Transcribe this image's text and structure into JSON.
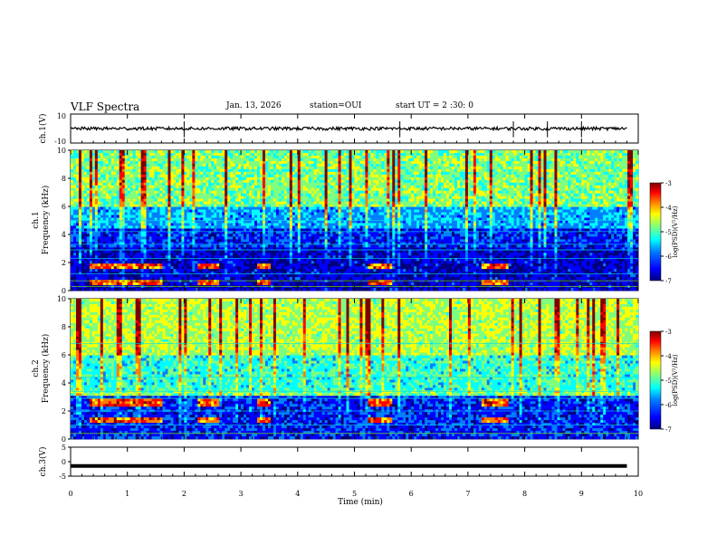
{
  "header": {
    "title": "VLF Spectra",
    "date": "Jan. 13, 2026",
    "station": "station=OUI",
    "start_ut": "start UT =  2 :30: 0"
  },
  "colors": {
    "background": "#ffffff",
    "axes": "#000000",
    "colormap": [
      "#00007f",
      "#0000ff",
      "#007fff",
      "#00ffff",
      "#7fff7f",
      "#ffff00",
      "#ff7f00",
      "#ff0000",
      "#7f0000"
    ]
  },
  "chart_data": [
    {
      "type": "line",
      "panel": "ch1-waveform",
      "ylabel": "ch.1(V)",
      "ylim": [
        -10,
        10
      ],
      "yticks": [
        "10",
        "-10"
      ],
      "description_values": {
        "baseline": 0,
        "spike_times_min": [
          2.0,
          5.8,
          7.8,
          8.4,
          9.0
        ]
      }
    },
    {
      "type": "heatmap",
      "panel": "ch1-spectrogram",
      "ylabel": "ch.1\nFrequency (kHz)",
      "xlim": [
        0,
        10
      ],
      "ylim": [
        0,
        10
      ],
      "yticks": [
        "0",
        "2",
        "4",
        "6",
        "8",
        "10"
      ],
      "colorbar": {
        "label": "log(PSD)(V²/Hz)",
        "ticks": [
          "-3",
          "-4",
          "-5",
          "-6",
          "-7"
        ],
        "range": [
          -7,
          -3
        ]
      },
      "bursts_min": [
        [
          0.35,
          1.6
        ],
        [
          2.25,
          2.6
        ],
        [
          3.3,
          3.5
        ],
        [
          5.25,
          5.65
        ],
        [
          7.25,
          7.7
        ]
      ],
      "burst_bands_khz": [
        [
          0.4,
          0.6
        ],
        [
          1.6,
          1.9
        ]
      ]
    },
    {
      "type": "heatmap",
      "panel": "ch2-spectrogram",
      "ylabel": "ch.2\nFrequency (kHz)",
      "xlim": [
        0,
        10
      ],
      "ylim": [
        0,
        10
      ],
      "yticks": [
        "0",
        "2",
        "4",
        "6",
        "8",
        "10"
      ],
      "colorbar": {
        "label": "log(PSD)(V²/Hz)",
        "ticks": [
          "-3",
          "-4",
          "-5",
          "-6",
          "-7"
        ],
        "range": [
          -7,
          -3
        ]
      },
      "bursts_min": [
        [
          0.35,
          1.6
        ],
        [
          2.25,
          2.6
        ],
        [
          3.3,
          3.5
        ],
        [
          5.25,
          5.65
        ],
        [
          7.25,
          7.7
        ]
      ],
      "burst_bands_khz": [
        [
          1.2,
          1.5
        ],
        [
          2.4,
          2.8
        ]
      ]
    },
    {
      "type": "line",
      "panel": "ch3-waveform",
      "ylabel": "ch.3(V)",
      "ylim": [
        -5,
        5
      ],
      "yticks": [
        "5",
        "0",
        "-5"
      ],
      "description_values": {
        "level": -1.5
      }
    }
  ],
  "xaxis": {
    "label": "Time (min)",
    "ticks": [
      "0",
      "1",
      "2",
      "3",
      "4",
      "5",
      "6",
      "7",
      "8",
      "9",
      "10"
    ]
  }
}
